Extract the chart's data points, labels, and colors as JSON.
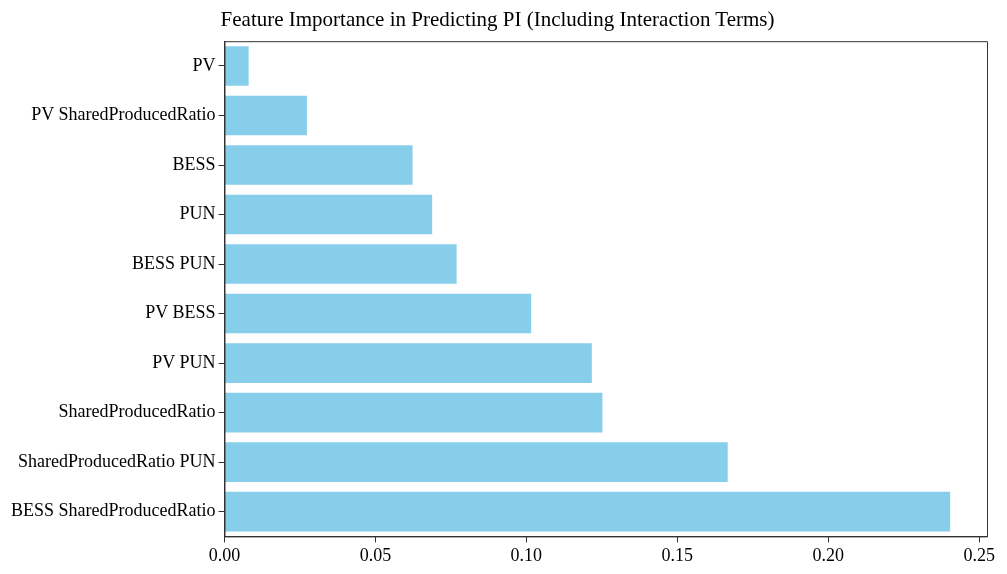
{
  "chart_data": {
    "type": "bar",
    "orientation": "horizontal",
    "title": "Feature Importance in Predicting PI (Including Interaction Terms)",
    "categories": [
      "PV",
      "PV SharedProducedRatio",
      "BESS",
      "PUN",
      "BESS PUN",
      "PV BESS",
      "PV PUN",
      "SharedProducedRatio",
      "SharedProducedRatio PUN",
      "BESS SharedProducedRatio"
    ],
    "values": [
      0.008,
      0.0273,
      0.0623,
      0.0688,
      0.0769,
      0.1016,
      0.1217,
      0.1252,
      0.1667,
      0.2404
    ],
    "color": "#87ceeb",
    "xlim": [
      0,
      0.2526
    ],
    "xticks": [
      {
        "value": 0,
        "label": "0.00"
      },
      {
        "value": 0.05,
        "label": "0.05"
      },
      {
        "value": 0.1,
        "label": "0.10"
      },
      {
        "value": 0.15,
        "label": "0.15"
      },
      {
        "value": 0.2,
        "label": "0.20"
      },
      {
        "value": 0.25,
        "label": "0.25"
      }
    ],
    "grid": false,
    "legend": false
  }
}
